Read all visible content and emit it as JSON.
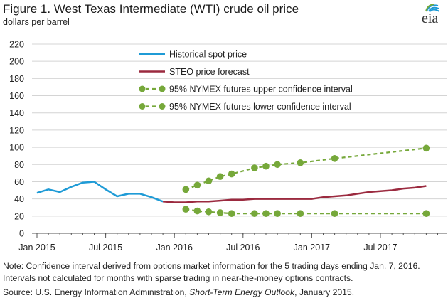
{
  "header": {
    "title": "Figure 1. West Texas Intermediate (WTI) crude oil price",
    "subtitle": "dollars per barrel",
    "logo_text": "eia"
  },
  "footer": {
    "note": "Note: Confidence interval derived from options market information for the 5 trading days ending Jan. 7, 2016. Intervals not calculated for months with sparse trading in near-the-money options contracts.",
    "source_prefix": "Source: U.S. Energy Information Administration, ",
    "source_publication": "Short-Term Energy Outlook",
    "source_suffix": ", January 2015."
  },
  "colors": {
    "historical": "#1f9bd6",
    "forecast": "#9b2a3f",
    "nymex": "#76a83a",
    "grid": "#d4d4d4",
    "axis": "#555555"
  },
  "chart_data": {
    "type": "line",
    "ylim": [
      0,
      220
    ],
    "y_ticks": [
      0,
      20,
      40,
      60,
      80,
      100,
      120,
      140,
      160,
      180,
      200,
      220
    ],
    "x_start": "2015-01",
    "x_end": "2017-12",
    "x_tick_labels": [
      {
        "label": "Jan 2015",
        "month": "2015-01"
      },
      {
        "label": "Jul 2015",
        "month": "2015-07"
      },
      {
        "label": "Jan 2016",
        "month": "2016-01"
      },
      {
        "label": "Jul 2016",
        "month": "2016-07"
      },
      {
        "label": "Jan 2017",
        "month": "2017-01"
      },
      {
        "label": "Jul 2017",
        "month": "2017-07"
      }
    ],
    "grid": "horizontal",
    "legend_position": "top",
    "series": [
      {
        "name": "Historical spot price",
        "style": "solid",
        "color_key": "historical",
        "points": [
          {
            "x": "2015-01",
            "y": 47
          },
          {
            "x": "2015-02",
            "y": 51
          },
          {
            "x": "2015-03",
            "y": 48
          },
          {
            "x": "2015-04",
            "y": 54
          },
          {
            "x": "2015-05",
            "y": 59
          },
          {
            "x": "2015-06",
            "y": 60
          },
          {
            "x": "2015-07",
            "y": 51
          },
          {
            "x": "2015-08",
            "y": 43
          },
          {
            "x": "2015-09",
            "y": 46
          },
          {
            "x": "2015-10",
            "y": 46
          },
          {
            "x": "2015-11",
            "y": 42
          },
          {
            "x": "2015-12",
            "y": 37
          }
        ]
      },
      {
        "name": "STEO price forecast",
        "style": "solid",
        "color_key": "forecast",
        "points": [
          {
            "x": "2015-12",
            "y": 37
          },
          {
            "x": "2016-01",
            "y": 36
          },
          {
            "x": "2016-02",
            "y": 36
          },
          {
            "x": "2016-03",
            "y": 37
          },
          {
            "x": "2016-04",
            "y": 37
          },
          {
            "x": "2016-05",
            "y": 38
          },
          {
            "x": "2016-06",
            "y": 39
          },
          {
            "x": "2016-07",
            "y": 39
          },
          {
            "x": "2016-08",
            "y": 40
          },
          {
            "x": "2016-09",
            "y": 40
          },
          {
            "x": "2016-10",
            "y": 40
          },
          {
            "x": "2016-11",
            "y": 40
          },
          {
            "x": "2016-12",
            "y": 40
          },
          {
            "x": "2017-01",
            "y": 40
          },
          {
            "x": "2017-02",
            "y": 42
          },
          {
            "x": "2017-03",
            "y": 43
          },
          {
            "x": "2017-04",
            "y": 44
          },
          {
            "x": "2017-05",
            "y": 46
          },
          {
            "x": "2017-06",
            "y": 48
          },
          {
            "x": "2017-07",
            "y": 49
          },
          {
            "x": "2017-08",
            "y": 50
          },
          {
            "x": "2017-09",
            "y": 52
          },
          {
            "x": "2017-10",
            "y": 53
          },
          {
            "x": "2017-11",
            "y": 55
          }
        ]
      },
      {
        "name": "95% NYMEX futures upper confidence interval",
        "style": "dashed-markers",
        "color_key": "nymex",
        "points": [
          {
            "x": "2016-02",
            "y": 51
          },
          {
            "x": "2016-03",
            "y": 56
          },
          {
            "x": "2016-04",
            "y": 61
          },
          {
            "x": "2016-05",
            "y": 66
          },
          {
            "x": "2016-06",
            "y": 69
          },
          {
            "x": "2016-08",
            "y": 76
          },
          {
            "x": "2016-09",
            "y": 78
          },
          {
            "x": "2016-10",
            "y": 80
          },
          {
            "x": "2016-12",
            "y": 82
          },
          {
            "x": "2017-03",
            "y": 87
          },
          {
            "x": "2017-11",
            "y": 99
          }
        ]
      },
      {
        "name": "95% NYMEX futures lower confidence interval",
        "style": "dashed-markers",
        "color_key": "nymex",
        "points": [
          {
            "x": "2016-02",
            "y": 28
          },
          {
            "x": "2016-03",
            "y": 26
          },
          {
            "x": "2016-04",
            "y": 25
          },
          {
            "x": "2016-05",
            "y": 24
          },
          {
            "x": "2016-06",
            "y": 23
          },
          {
            "x": "2016-08",
            "y": 23
          },
          {
            "x": "2016-09",
            "y": 23
          },
          {
            "x": "2016-10",
            "y": 23
          },
          {
            "x": "2016-12",
            "y": 23
          },
          {
            "x": "2017-03",
            "y": 23
          },
          {
            "x": "2017-11",
            "y": 23
          }
        ]
      }
    ]
  }
}
